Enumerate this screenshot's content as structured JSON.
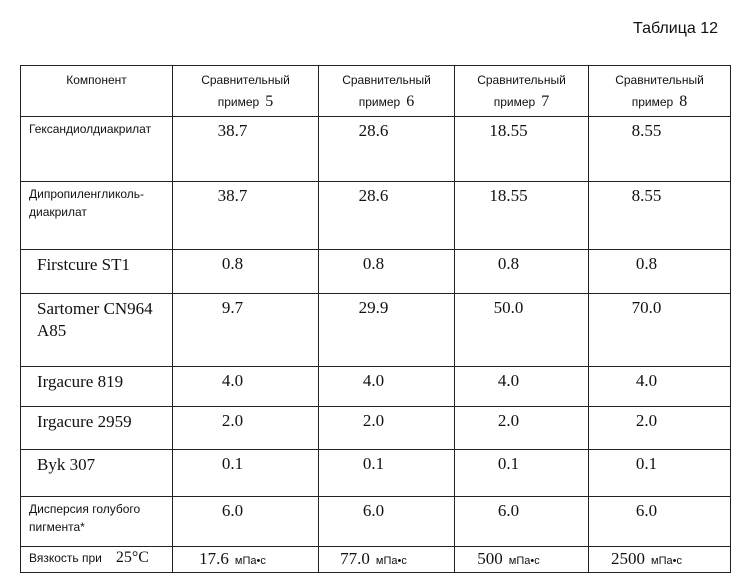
{
  "title": "Таблица 12",
  "table": {
    "header": [
      {
        "text": "Компонент"
      },
      {
        "text": "Сравнительный",
        "line2": "пример",
        "num": "5"
      },
      {
        "text": "Сравнительный",
        "line2": "пример",
        "num": "6"
      },
      {
        "text": "Сравнительный",
        "line2": "пример",
        "num": "7"
      },
      {
        "text": "Сравнительный",
        "line2": "пример",
        "num": "8"
      }
    ],
    "rows": [
      [
        "Гександиолдиакрилат",
        "38.7",
        "28.6",
        "18.55",
        "8.55"
      ],
      [
        "Дипропиленгликоль-диакрилат",
        "38.7",
        "28.6",
        "18.55",
        "8.55"
      ],
      [
        "Firstcure ST1",
        "0.8",
        "0.8",
        "0.8",
        "0.8"
      ],
      [
        "Sartomer CN964 A85",
        "9.7",
        "29.9",
        "50.0",
        "70.0"
      ],
      [
        "Irgacure 819",
        "4.0",
        "4.0",
        "4.0",
        "4.0"
      ],
      [
        "Irgacure 2959",
        "2.0",
        "2.0",
        "2.0",
        "2.0"
      ],
      [
        "Byk 307",
        "0.1",
        "0.1",
        "0.1",
        "0.1"
      ],
      [
        "Дисперсия голубого пигмента*",
        "6.0",
        "6.0",
        "6.0",
        "6.0"
      ]
    ],
    "viscosity": {
      "label": "Вязкость при",
      "temp": "25°C",
      "values": [
        {
          "value": "17.6",
          "unit": "мПа•с"
        },
        {
          "value": "77.0",
          "unit": "мПа•с"
        },
        {
          "value": "500",
          "unit": "мПа•с"
        },
        {
          "value": "2500",
          "unit": "мПа•с"
        }
      ]
    }
  }
}
